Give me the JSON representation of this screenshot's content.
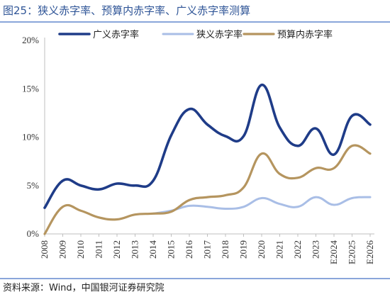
{
  "chart_data": {
    "type": "line",
    "title": "图25：狭义赤字率、预算内赤字率、广义赤字率测算",
    "source": "资料来源：Wind，中国银河证券研究院",
    "xlabel": "",
    "ylabel": "",
    "categories": [
      "2008",
      "2009",
      "2010",
      "2011",
      "2012",
      "2013",
      "2014",
      "2015",
      "2016",
      "2017",
      "2018",
      "2019",
      "2020",
      "2021",
      "2022",
      "2023",
      "E2024",
      "E2025",
      "E2026"
    ],
    "yticks": [
      "0%",
      "5%",
      "10%",
      "15%",
      "20%"
    ],
    "ylim": [
      0,
      20
    ],
    "grid": false,
    "legend_position": "top",
    "series": [
      {
        "name": "广义赤字率",
        "color": "#1F3C88",
        "values": [
          2.7,
          5.5,
          5.0,
          4.6,
          5.2,
          5.0,
          5.5,
          10.2,
          12.9,
          11.3,
          10.1,
          10.1,
          15.4,
          11.0,
          9.1,
          10.9,
          8.2,
          12.2,
          11.3
        ]
      },
      {
        "name": "狭义赤字率",
        "color": "#A9BEE6",
        "values": [
          null,
          null,
          null,
          null,
          null,
          null,
          2.1,
          2.4,
          2.9,
          2.8,
          2.6,
          2.8,
          3.7,
          3.1,
          2.8,
          3.8,
          3.0,
          3.7,
          3.8
        ]
      },
      {
        "name": "预算内赤字率",
        "color": "#B5955F",
        "values": [
          0.0,
          2.8,
          2.4,
          1.7,
          1.5,
          2.0,
          2.1,
          2.3,
          3.5,
          3.8,
          4.0,
          4.8,
          8.3,
          6.2,
          5.8,
          6.8,
          6.8,
          9.1,
          8.3
        ]
      }
    ]
  }
}
